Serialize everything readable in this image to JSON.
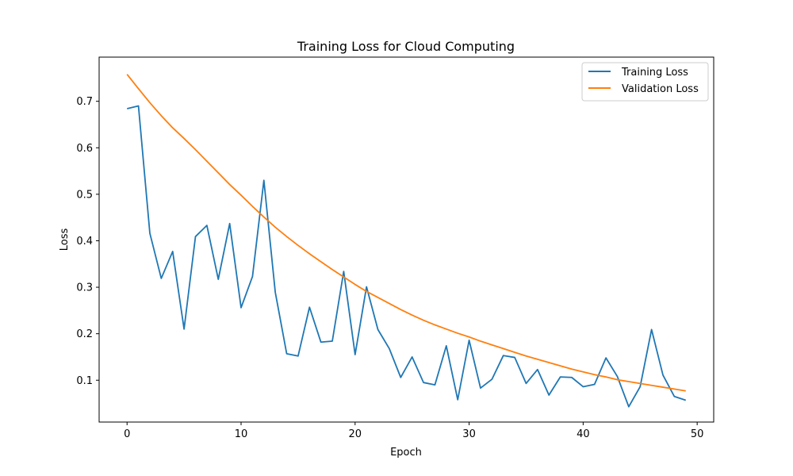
{
  "chart_data": {
    "type": "line",
    "title": "Training Loss for Cloud Computing",
    "xlabel": "Epoch",
    "ylabel": "Loss",
    "xlim": [
      -2.45,
      51.45
    ],
    "ylim": [
      0.01,
      0.795
    ],
    "xticks": [
      0,
      10,
      20,
      30,
      40,
      50
    ],
    "yticks": [
      0.1,
      0.2,
      0.3,
      0.4,
      0.5,
      0.6,
      0.7
    ],
    "xtick_labels": [
      "0",
      "10",
      "20",
      "30",
      "40",
      "50"
    ],
    "ytick_labels": [
      "0.1",
      "0.2",
      "0.3",
      "0.4",
      "0.5",
      "0.6",
      "0.7"
    ],
    "grid": false,
    "legend_position": "top-right",
    "x": [
      0,
      1,
      2,
      3,
      4,
      5,
      6,
      7,
      8,
      9,
      10,
      11,
      12,
      13,
      14,
      15,
      16,
      17,
      18,
      19,
      20,
      21,
      22,
      23,
      24,
      25,
      26,
      27,
      28,
      29,
      30,
      31,
      32,
      33,
      34,
      35,
      36,
      37,
      38,
      39,
      40,
      41,
      42,
      43,
      44,
      45,
      46,
      47,
      48,
      49
    ],
    "series": [
      {
        "name": "Training Loss",
        "color": "#1f77b4",
        "values": [
          0.684,
          0.69,
          0.416,
          0.319,
          0.377,
          0.21,
          0.409,
          0.433,
          0.317,
          0.437,
          0.256,
          0.323,
          0.53,
          0.289,
          0.157,
          0.152,
          0.257,
          0.182,
          0.184,
          0.334,
          0.155,
          0.301,
          0.209,
          0.168,
          0.106,
          0.15,
          0.095,
          0.09,
          0.174,
          0.058,
          0.186,
          0.083,
          0.102,
          0.153,
          0.149,
          0.093,
          0.123,
          0.068,
          0.107,
          0.106,
          0.086,
          0.091,
          0.148,
          0.108,
          0.043,
          0.086,
          0.209,
          0.111,
          0.065,
          0.057
        ]
      },
      {
        "name": "Validation Loss",
        "color": "#ff7f0e",
        "values": [
          0.758,
          0.727,
          0.697,
          0.669,
          0.643,
          0.62,
          0.596,
          0.571,
          0.546,
          0.521,
          0.498,
          0.474,
          0.451,
          0.429,
          0.409,
          0.39,
          0.372,
          0.355,
          0.338,
          0.322,
          0.306,
          0.291,
          0.278,
          0.265,
          0.252,
          0.24,
          0.229,
          0.219,
          0.21,
          0.201,
          0.193,
          0.184,
          0.176,
          0.168,
          0.16,
          0.152,
          0.145,
          0.138,
          0.131,
          0.124,
          0.118,
          0.112,
          0.107,
          0.101,
          0.097,
          0.093,
          0.089,
          0.085,
          0.081,
          0.077
        ]
      }
    ]
  }
}
